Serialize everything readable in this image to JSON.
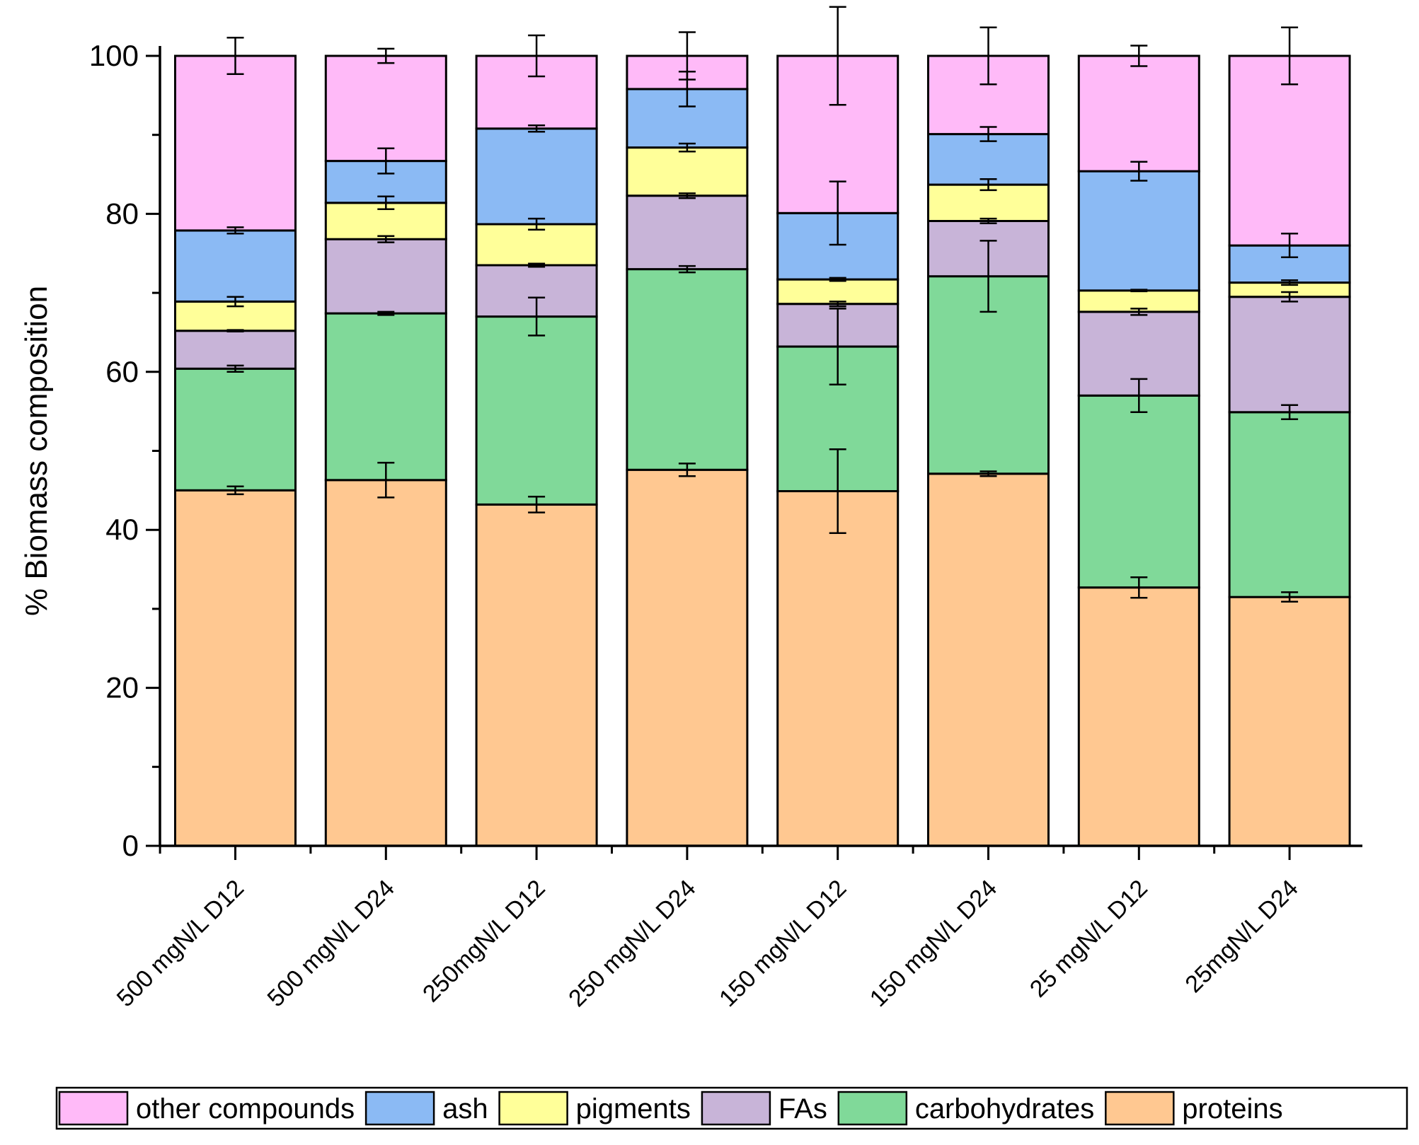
{
  "chart_data": {
    "type": "bar",
    "stacked": true,
    "title": "",
    "xlabel": "",
    "ylabel": "% Biomass composition",
    "ylim": [
      0,
      100
    ],
    "yticks": [
      0,
      20,
      40,
      60,
      80,
      100
    ],
    "categories": [
      "500 mgN/L D12",
      "500 mgN/L D24",
      "250mgN/L D12",
      "250 mgN/L D24",
      "150 mgN/L D12",
      "150 mgN/L D24",
      "25 mgN/L D12",
      "25mgN/L D24"
    ],
    "series": [
      {
        "name": "proteins",
        "color": "#FFC891",
        "values": [
          45.0,
          46.3,
          43.2,
          47.6,
          44.9,
          47.1,
          32.7,
          31.5
        ],
        "errors": [
          0.5,
          2.2,
          1.0,
          0.8,
          5.3,
          0.3,
          1.3,
          0.6
        ]
      },
      {
        "name": "carbohydrates",
        "color": "#80D999",
        "values": [
          15.4,
          21.1,
          23.8,
          25.4,
          18.3,
          25.0,
          24.3,
          23.4
        ],
        "errors": [
          0.4,
          0.2,
          2.4,
          0.4,
          4.8,
          4.5,
          2.1,
          0.9
        ]
      },
      {
        "name": "FAs",
        "color": "#C8B4D8",
        "values": [
          4.8,
          9.4,
          6.5,
          9.3,
          5.4,
          7.0,
          10.6,
          14.6
        ],
        "errors": [
          0.1,
          0.4,
          0.2,
          0.3,
          0.3,
          0.3,
          0.4,
          0.6
        ]
      },
      {
        "name": "pigments",
        "color": "#FFFF99",
        "values": [
          3.7,
          4.6,
          5.2,
          6.1,
          3.1,
          4.6,
          2.7,
          1.8
        ],
        "errors": [
          0.6,
          0.8,
          0.7,
          0.5,
          0.2,
          0.7,
          0.1,
          0.3
        ]
      },
      {
        "name": "ash",
        "color": "#8BBAF4",
        "values": [
          9.0,
          5.3,
          12.1,
          7.4,
          8.4,
          6.4,
          15.1,
          4.7
        ],
        "errors": [
          0.4,
          1.6,
          0.4,
          2.2,
          4.0,
          0.9,
          1.2,
          1.5
        ]
      },
      {
        "name": "other compounds",
        "color": "#FFBAF8",
        "values": [
          22.1,
          13.3,
          9.2,
          4.2,
          19.9,
          9.9,
          14.6,
          24.0
        ],
        "errors": [
          2.3,
          0.9,
          2.6,
          3.0,
          6.2,
          3.6,
          1.3,
          3.6
        ]
      }
    ],
    "legend": {
      "placement": "bottom",
      "order": [
        "other compounds",
        "ash",
        "pigments",
        "FAs",
        "carbohydrates",
        "proteins"
      ]
    }
  }
}
